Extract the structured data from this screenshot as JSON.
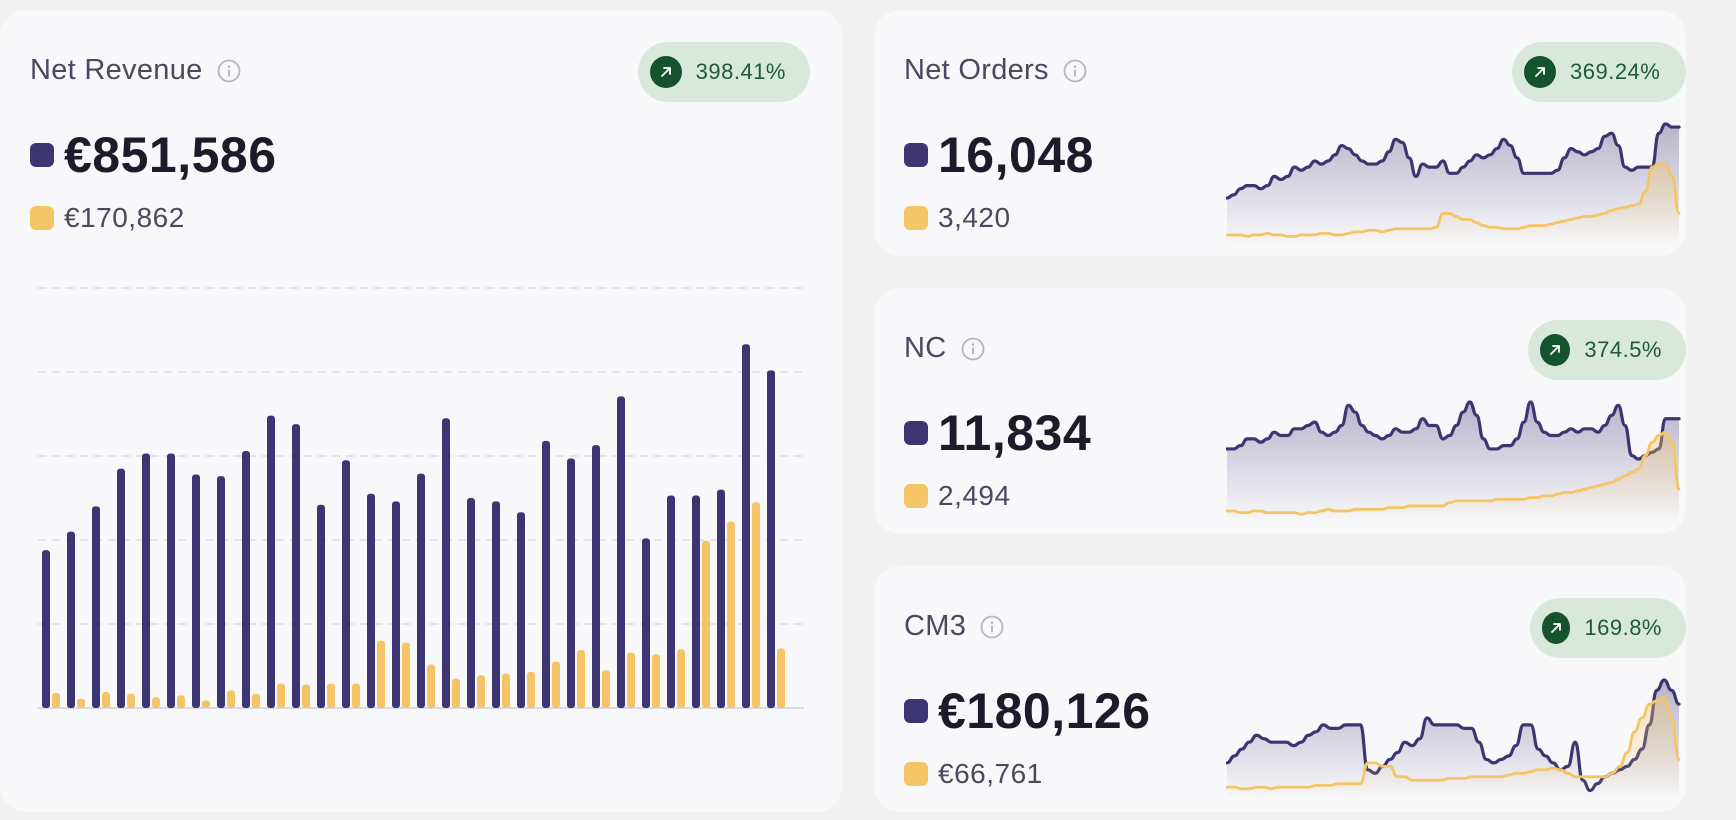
{
  "colors": {
    "primary": "#3d3472",
    "secondary": "#f4c566",
    "badge_bg": "#d8e9dc",
    "badge_icon": "#15532d",
    "badge_text": "#1f5a34"
  },
  "cards": {
    "net_revenue": {
      "title": "Net Revenue",
      "change": "398.41%",
      "primary": "€851,586",
      "secondary": "€170,862"
    },
    "net_orders": {
      "title": "Net Orders",
      "change": "369.24%",
      "primary": "16,048",
      "secondary": "3,420"
    },
    "nc": {
      "title": "NC",
      "change": "374.5%",
      "primary": "11,834",
      "secondary": "2,494"
    },
    "cm3": {
      "title": "CM3",
      "change": "169.8%",
      "primary": "€180,126",
      "secondary": "€66,761"
    }
  },
  "chart_data": [
    {
      "type": "bar",
      "grid": true,
      "ylim": [
        0,
        50
      ],
      "series": [
        {
          "values": [
            18.8,
            21,
            24,
            28.5,
            30.3,
            30.3,
            27.8,
            27.6,
            30.6,
            34.8,
            33.8,
            24.2,
            29.5,
            25.5,
            24.6,
            27.9,
            34.5,
            25,
            24.6,
            23.3,
            31.8,
            29.7,
            31.3,
            37.1,
            20.2,
            25.3,
            25.3,
            26,
            43.3,
            40.2
          ]
        },
        {
          "values": [
            1.8,
            1.1,
            1.9,
            1.7,
            1.3,
            1.5,
            0.9,
            2.1,
            1.7,
            2.9,
            2.8,
            2.9,
            2.9,
            8,
            7.8,
            5.2,
            3.5,
            3.9,
            4.1,
            4.3,
            5.5,
            6.9,
            4.5,
            6.6,
            6.4,
            7,
            19.9,
            22.2,
            24.5,
            7.1
          ]
        }
      ]
    },
    {
      "type": "area",
      "series": [
        {
          "values": [
            13,
            14,
            16,
            17,
            17,
            16,
            17,
            20,
            19,
            20,
            23,
            22,
            23,
            25,
            24,
            25,
            27,
            30,
            29,
            27,
            25,
            24,
            24,
            25,
            28,
            32,
            31,
            26,
            20,
            24,
            23,
            23,
            25,
            21,
            21,
            23,
            25,
            27,
            26,
            27,
            29,
            32,
            30,
            26,
            21,
            21,
            21,
            21,
            21,
            22,
            26,
            29,
            28,
            27,
            28,
            29,
            33,
            34,
            30,
            23,
            22,
            23,
            23,
            23,
            34,
            37,
            36,
            36
          ]
        },
        {
          "values": [
            1,
            1,
            1,
            0.5,
            1,
            1,
            1.5,
            1,
            1,
            0.5,
            0.5,
            1,
            1,
            1,
            1.5,
            1.5,
            1,
            1,
            1.5,
            2,
            2,
            2.5,
            2.5,
            2,
            2.5,
            3,
            3,
            3,
            3,
            3,
            3,
            3.5,
            8,
            8,
            7,
            6,
            6,
            5,
            4,
            3.5,
            3.5,
            3,
            3,
            3,
            3.5,
            4,
            4,
            4,
            4.5,
            5,
            5.5,
            6,
            6.5,
            7,
            7,
            7.5,
            8,
            9,
            9.5,
            10,
            10.5,
            11,
            15,
            23,
            24,
            24,
            20,
            8
          ]
        }
      ]
    },
    {
      "type": "area",
      "series": [
        {
          "values": [
            20,
            20,
            21,
            23,
            23,
            22,
            23,
            25,
            24,
            24,
            26,
            26,
            27,
            28,
            25,
            24,
            25,
            27,
            33,
            31,
            27,
            25,
            24,
            23,
            24,
            26,
            25,
            25,
            26,
            29,
            27,
            27,
            23,
            24,
            27,
            31,
            34,
            30,
            23,
            20,
            20,
            21,
            21,
            23,
            28,
            34,
            28,
            25,
            24,
            24,
            25,
            26,
            25,
            26,
            26,
            25,
            27,
            30,
            33,
            27,
            18,
            17,
            18,
            19,
            20,
            29,
            29,
            29
          ]
        },
        {
          "values": [
            1.5,
            1.5,
            1,
            1,
            1.5,
            1.5,
            1,
            1,
            1,
            1,
            1,
            0.5,
            1,
            1,
            1.5,
            2,
            1.5,
            1.5,
            1.5,
            2,
            2,
            2,
            2,
            2,
            2.5,
            2.5,
            2.5,
            3,
            3,
            3,
            3,
            3,
            3,
            4,
            4.5,
            4.5,
            4.5,
            4.5,
            4.5,
            4.5,
            5,
            5,
            5,
            5,
            5,
            5.5,
            5.5,
            6,
            6,
            6.5,
            7,
            7,
            7.5,
            8,
            8.5,
            9,
            9.5,
            10,
            11,
            12,
            13,
            14,
            18,
            22,
            24,
            25,
            22,
            8
          ]
        }
      ]
    },
    {
      "type": "area",
      "series": [
        {
          "values": [
            9,
            11,
            13,
            15,
            17,
            16,
            15,
            15,
            15,
            14,
            15,
            17,
            18,
            20,
            19,
            19,
            20,
            20,
            20,
            7,
            6,
            8,
            10,
            12,
            15,
            14,
            16,
            22,
            20,
            20,
            20,
            20,
            19,
            19,
            15,
            10,
            9,
            10,
            11,
            14,
            20,
            20,
            13,
            11,
            9,
            7,
            8,
            15,
            4,
            1,
            3,
            5,
            6,
            7,
            8,
            10,
            13,
            20,
            30,
            33,
            30,
            26
          ]
        },
        {
          "values": [
            2,
            2,
            1.5,
            1.5,
            2,
            2,
            1.5,
            2,
            2,
            2,
            2,
            2,
            2.5,
            2.5,
            2.5,
            3,
            3,
            3,
            3,
            9,
            9,
            8,
            8,
            5,
            5,
            4,
            4,
            4,
            4,
            4,
            4.5,
            4.5,
            4.5,
            5,
            5,
            5,
            5,
            5,
            5.5,
            6,
            6,
            6.5,
            7,
            7,
            7.5,
            7,
            6,
            5,
            5,
            5,
            5,
            5,
            6,
            8,
            12,
            18,
            22,
            26,
            27,
            28,
            22,
            10
          ]
        }
      ]
    }
  ]
}
